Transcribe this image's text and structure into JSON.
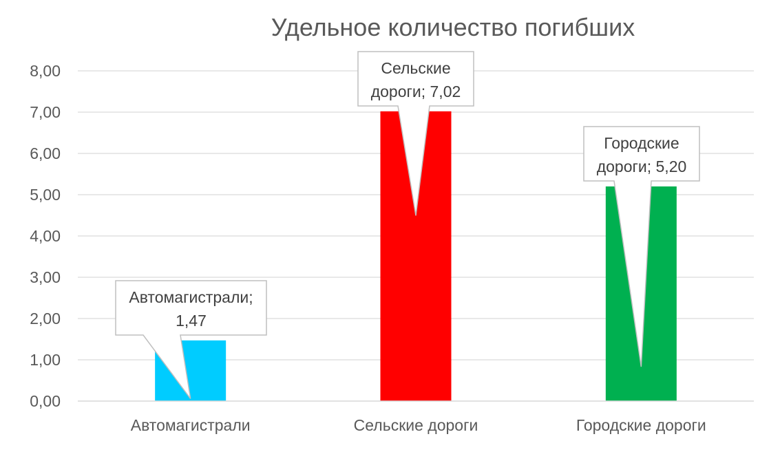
{
  "chart_data": {
    "type": "bar",
    "title": "Удельное количество погибших",
    "categories": [
      "Автомагистрали",
      "Сельские дороги",
      "Городские дороги"
    ],
    "values": [
      1.47,
      7.02,
      5.2
    ],
    "colors": [
      "#00CCFF",
      "#FF0000",
      "#00B050"
    ],
    "data_labels": [
      [
        "Автомагистрали;",
        "1,47"
      ],
      [
        "Сельские",
        "дороги; 7,02"
      ],
      [
        "Городские",
        "дороги; 5,20"
      ]
    ],
    "y_tick_labels": [
      "0,00",
      "1,00",
      "2,00",
      "3,00",
      "4,00",
      "5,00",
      "6,00",
      "7,00",
      "8,00"
    ],
    "ylim": [
      0,
      8
    ],
    "ytick_step": 1,
    "grid": true,
    "legend": "none",
    "xlabel": "",
    "ylabel": ""
  }
}
